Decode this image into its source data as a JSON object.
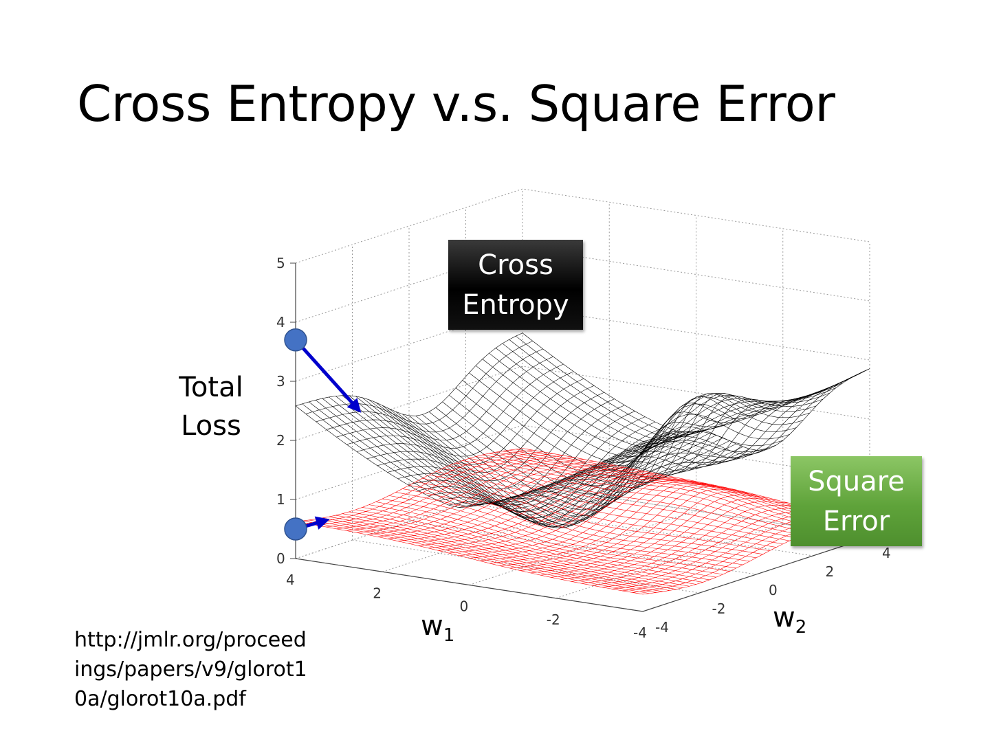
{
  "slide": {
    "title": "Cross Entropy v.s. Square Error",
    "source": "http://jmlr.org/proceedings/papers/v9/glorot10a/glorot10a.pdf"
  },
  "chart_data": {
    "type": "surface",
    "zlabel": "Total Loss",
    "xlabel_base": "w",
    "xlabel_sub": "1",
    "ylabel_base": "w",
    "ylabel_sub": "2",
    "x_ticks": [
      "4",
      "2",
      "0",
      "-2",
      "-4"
    ],
    "y_ticks": [
      "-4",
      "-2",
      "0",
      "2",
      "4"
    ],
    "z_ticks": [
      "0",
      "1",
      "2",
      "3",
      "4",
      "5"
    ],
    "xlim": [
      -4,
      4
    ],
    "ylim": [
      -4,
      4
    ],
    "zlim": [
      0,
      5
    ],
    "grid": true,
    "series": [
      {
        "name_line1": "Cross",
        "name_line2": "Entropy",
        "color": "#000000",
        "box_color": "#000000",
        "legend_placement": "top-center"
      },
      {
        "name_line1": "Square",
        "name_line2": "Error",
        "color": "#ff0000",
        "box_color": "#5fa33a",
        "legend_placement": "right"
      }
    ],
    "markers": [
      {
        "surface": "Cross Entropy",
        "w1": 4,
        "w2": -4,
        "loss": 3.7,
        "gradient": "large",
        "color": "#4472c4",
        "arrow_color": "#0000cc"
      },
      {
        "surface": "Square Error",
        "w1": 4,
        "w2": -4,
        "loss": 0.5,
        "gradient": "small",
        "color": "#4472c4",
        "arrow_color": "#0000cc"
      }
    ]
  }
}
